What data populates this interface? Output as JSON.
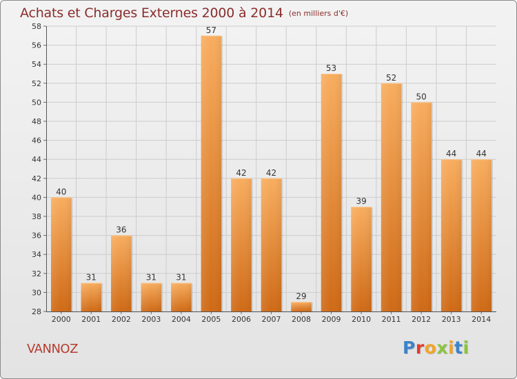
{
  "title": "Achats et Charges Externes 2000 à 2014",
  "subtitle": "(en milliers d'€)",
  "place": "VANNOZ",
  "brand": {
    "text": "Proxiti",
    "letters": [
      "P",
      "r",
      "o",
      "x",
      "i",
      "t",
      "i"
    ],
    "colors": [
      "#3c83c9",
      "#e7392c",
      "#f0a52a",
      "#8bc43f",
      "#f0a52a",
      "#3c83c9",
      "#8bc43f"
    ]
  },
  "colors": {
    "bar_top": "#f8ad5f",
    "bar_bottom": "#cf6a16",
    "axis_text": "#333333",
    "grid": "#cccccc",
    "title": "#8a2c2c",
    "place": "#b43c2f"
  },
  "chart_data": {
    "type": "bar",
    "categories": [
      "2000",
      "2001",
      "2002",
      "2003",
      "2004",
      "2005",
      "2006",
      "2007",
      "2008",
      "2009",
      "2010",
      "2011",
      "2012",
      "2013",
      "2014"
    ],
    "values": [
      40,
      31,
      36,
      31,
      31,
      57,
      42,
      42,
      29,
      53,
      39,
      52,
      50,
      44,
      44
    ],
    "title": "Achats et Charges Externes 2000 à 2014",
    "subtitle": "(en milliers d'€)",
    "xlabel": "",
    "ylabel": "",
    "ylim": [
      28,
      58
    ],
    "yticks": [
      28,
      30,
      32,
      34,
      36,
      38,
      40,
      42,
      44,
      46,
      48,
      50,
      52,
      54,
      56,
      58
    ],
    "grid": true,
    "data_labels": true
  }
}
